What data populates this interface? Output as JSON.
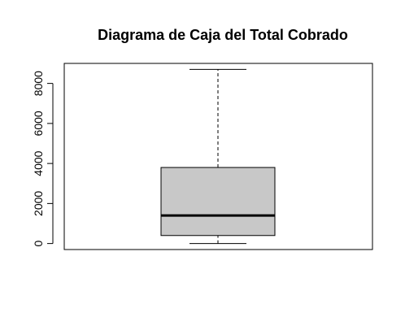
{
  "chart_data": {
    "type": "boxplot",
    "title": "Diagrama de Caja del Total Cobrado",
    "xlabel": "",
    "ylabel": "",
    "ylim": [
      -300,
      9000
    ],
    "yticks": [
      0,
      2000,
      4000,
      6000,
      8000
    ],
    "ytick_labels": [
      "0",
      "2000",
      "4000",
      "6000",
      "8000"
    ],
    "box": {
      "min": 0,
      "q1": 400,
      "median": 1400,
      "q3": 3800,
      "max": 8700
    },
    "box_fill": "#c8c8c8",
    "line_color": "#000000",
    "grid": false,
    "legend": "none"
  }
}
